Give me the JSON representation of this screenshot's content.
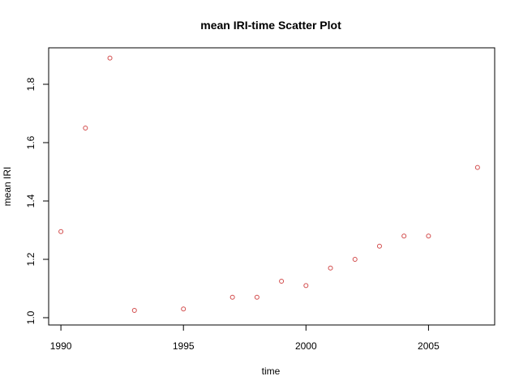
{
  "chart_data": {
    "type": "scatter",
    "title": "mean IRI-time Scatter Plot",
    "xlabel": "time",
    "ylabel": "mean IRI",
    "xlim": [
      1989.5,
      2007.7
    ],
    "ylim": [
      0.975,
      1.925
    ],
    "xticks": [
      1990,
      1995,
      2000,
      2005
    ],
    "yticks": [
      1.0,
      1.2,
      1.4,
      1.6,
      1.8
    ],
    "xtick_labels": [
      "1990",
      "1995",
      "2000",
      "2005"
    ],
    "ytick_labels": [
      "1.0",
      "1.2",
      "1.4",
      "1.6",
      "1.8"
    ],
    "point_color": "#d24b4b",
    "grid": false,
    "legend": "none",
    "x": [
      1990,
      1991,
      1992,
      1993,
      1995,
      1997,
      1998,
      1999,
      2000,
      2001,
      2002,
      2003,
      2004,
      2005,
      2007
    ],
    "y": [
      1.295,
      1.65,
      1.89,
      1.025,
      1.03,
      1.07,
      1.07,
      1.125,
      1.11,
      1.17,
      1.2,
      1.245,
      1.28,
      1.28,
      1.515
    ]
  }
}
